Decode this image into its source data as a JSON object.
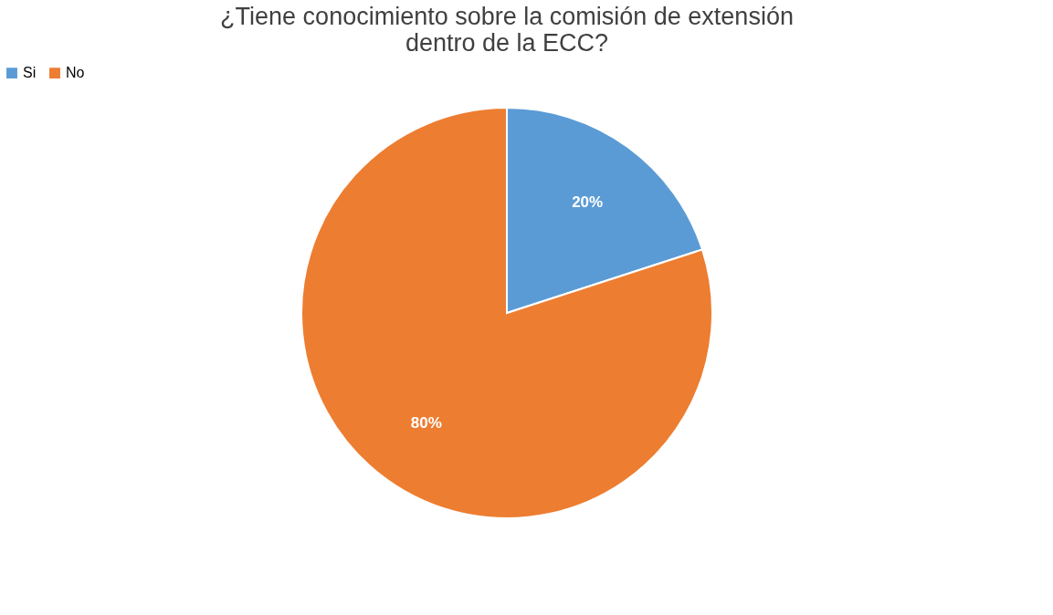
{
  "chart_data": {
    "type": "pie",
    "title": "¿Tiene conocimiento sobre la comisión de extensión dentro de la ECC?",
    "categories": [
      "Si",
      "No"
    ],
    "values": [
      20,
      80
    ],
    "colors": [
      "#5b9bd5",
      "#ed7d31"
    ],
    "value_labels": [
      "20%",
      "80%"
    ],
    "legend": "top"
  }
}
